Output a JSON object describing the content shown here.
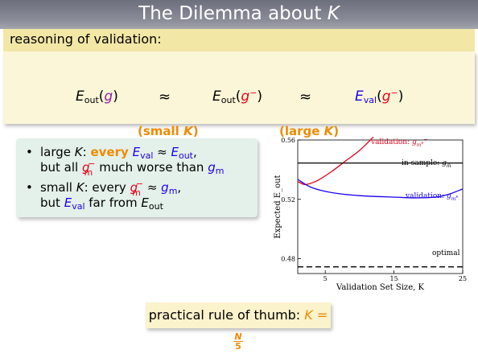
{
  "title": {
    "text": "The Dilemma about",
    "var": "K"
  },
  "validation_block": {
    "heading": "reasoning of validation:",
    "approx_symbol": "≈",
    "caption_small": "(small",
    "caption_large": "(large",
    "caption_var": "K",
    "caption_close": ")"
  },
  "bullets": {
    "bullet_symbol": "•",
    "b1_text1": "large",
    "b1_var": "K",
    "b1_colon": ":",
    "b1_every": "every",
    "b1_line2_pre": "but all",
    "b1_line2_mid": "much worse than",
    "b2_text1": "small",
    "b2_var": "K",
    "b2_colon": ": every",
    "b2_line2_pre": "but",
    "b2_line2_mid": "far from"
  },
  "rule": {
    "text": "practical rule of thumb:",
    "lhs": "K =",
    "numerator": "N",
    "denominator": "5"
  },
  "colors": {
    "title_bg": "#7b7e89",
    "block_head": "#f3e7a6",
    "block_body": "#fbf6d8",
    "bullet_bg": "#e4f1ea",
    "red": "#e8001a",
    "blue": "#1a00f0",
    "orange": "#f08a00"
  },
  "chart_data": {
    "type": "line",
    "xlabel": "Validation Set Size, K",
    "ylabel": "Expected E_out",
    "xlim": [
      1,
      25
    ],
    "ylim": [
      0.47,
      0.56
    ],
    "xticks": [
      "5",
      "15",
      "25"
    ],
    "yticks": [
      "0.48",
      "0.52",
      "0.56"
    ],
    "series": [
      {
        "name": "validation: g_m*^-",
        "color": "#e8001a",
        "x": [
          1,
          2,
          3,
          4,
          6,
          8,
          10,
          12
        ],
        "y": [
          0.532,
          0.53,
          0.531,
          0.533,
          0.539,
          0.546,
          0.553,
          0.562
        ]
      },
      {
        "name": "in-sample: g_m",
        "color": "#000000",
        "x": [
          1,
          25
        ],
        "y": [
          0.5445,
          0.5445
        ]
      },
      {
        "name": "validation: g_m*",
        "color": "#1a00f0",
        "x": [
          1,
          3,
          6,
          10,
          15,
          18,
          21,
          23,
          25
        ],
        "y": [
          0.5335,
          0.528,
          0.5245,
          0.5225,
          0.5215,
          0.521,
          0.5215,
          0.5235,
          0.527
        ]
      },
      {
        "name": "optimal",
        "color": "#000000",
        "style": "dashed",
        "x": [
          1,
          25
        ],
        "y": [
          0.4745,
          0.4745
        ]
      }
    ]
  }
}
